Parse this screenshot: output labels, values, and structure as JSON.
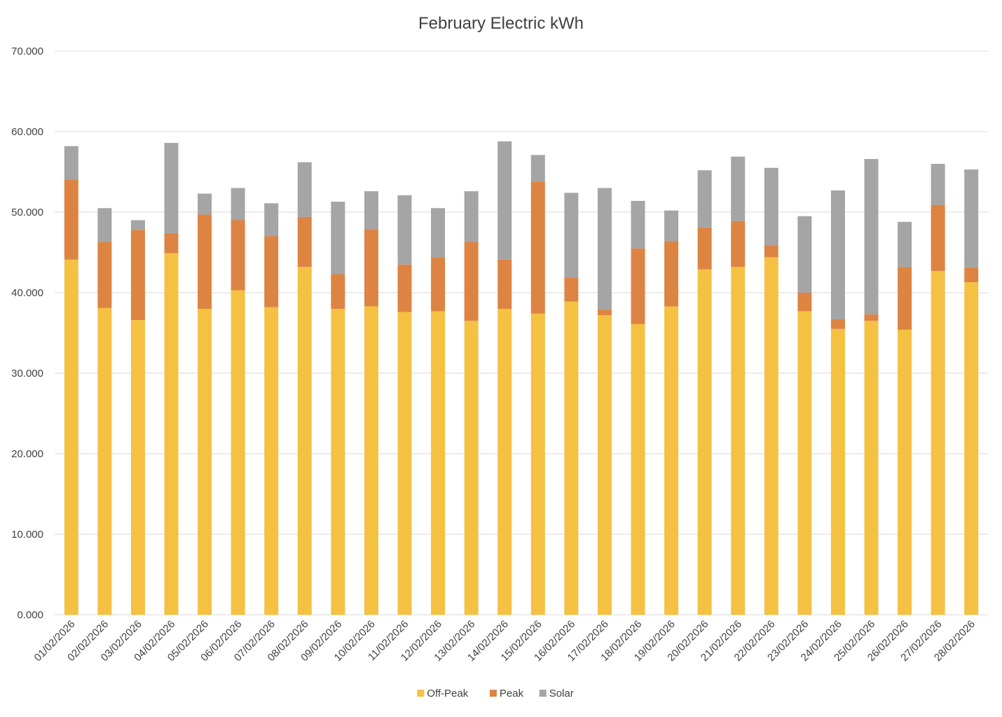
{
  "chart_data": {
    "type": "bar",
    "stacked": true,
    "title": "February Electric kWh",
    "xlabel": "",
    "ylabel": "",
    "ylim": [
      0,
      70
    ],
    "yticks": [
      "0.000",
      "10.000",
      "20.000",
      "30.000",
      "40.000",
      "50.000",
      "60.000",
      "70.000"
    ],
    "grid": true,
    "legend_position": "bottom",
    "categories": [
      "01/02/2026",
      "02/02/2026",
      "03/02/2026",
      "04/02/2026",
      "05/02/2026",
      "06/02/2026",
      "07/02/2026",
      "08/02/2026",
      "09/02/2026",
      "10/02/2026",
      "11/02/2026",
      "12/02/2026",
      "13/02/2026",
      "14/02/2026",
      "15/02/2026",
      "16/02/2026",
      "17/02/2026",
      "18/02/2026",
      "19/02/2026",
      "20/02/2026",
      "21/02/2026",
      "22/02/2026",
      "23/02/2026",
      "24/02/2026",
      "25/02/2026",
      "26/02/2026",
      "27/02/2026",
      "28/02/2026"
    ],
    "series": [
      {
        "name": "Off-Peak",
        "color": "#f4c142",
        "values": [
          44.1,
          38.1,
          36.6,
          44.9,
          38.0,
          40.3,
          38.2,
          43.2,
          38.0,
          38.3,
          37.6,
          37.7,
          36.5,
          38.0,
          37.4,
          38.9,
          37.2,
          36.1,
          38.3,
          42.9,
          43.2,
          44.4,
          37.7,
          35.5,
          36.5,
          35.4,
          42.7,
          41.3
        ]
      },
      {
        "name": "Peak",
        "color": "#dd8442",
        "values": [
          9.9,
          8.2,
          11.2,
          2.5,
          11.7,
          8.7,
          8.8,
          6.2,
          4.3,
          9.6,
          5.9,
          6.7,
          9.8,
          6.1,
          16.4,
          3.0,
          0.7,
          9.4,
          8.1,
          5.2,
          5.7,
          1.5,
          2.3,
          1.2,
          0.8,
          7.8,
          8.2,
          1.8
        ]
      },
      {
        "name": "Solar",
        "color": "#a5a5a5",
        "values": [
          4.2,
          4.2,
          1.2,
          11.2,
          2.6,
          4.0,
          4.1,
          6.8,
          9.0,
          4.7,
          8.6,
          6.1,
          6.3,
          14.7,
          3.3,
          10.5,
          15.1,
          5.9,
          3.8,
          7.1,
          8.0,
          9.6,
          9.5,
          16.0,
          19.3,
          5.6,
          5.1,
          12.2
        ]
      }
    ]
  }
}
